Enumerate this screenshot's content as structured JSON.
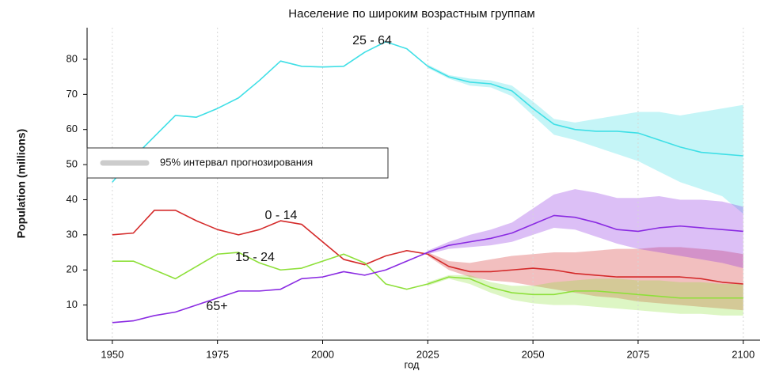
{
  "chart_data": {
    "type": "line",
    "title": "Население по широким возрастным группам",
    "y_label": "Population (millions)",
    "x_label": "год",
    "band_label": "95% интервал прогнозирования",
    "band_legend_color": "#cccccc",
    "grid": "x",
    "legend_position": "left",
    "xlim": [
      1944,
      2104
    ],
    "ylim": [
      0,
      89
    ],
    "xticks": [
      1950,
      1975,
      2000,
      2025,
      2050,
      2075,
      2100
    ],
    "yticks": [
      10,
      20,
      30,
      40,
      50,
      60,
      70,
      80
    ],
    "x": [
      1950,
      1955,
      1960,
      1965,
      1970,
      1975,
      1980,
      1985,
      1990,
      1995,
      2000,
      2005,
      2010,
      2015,
      2020,
      2025,
      2030,
      2035,
      2040,
      2045,
      2050,
      2055,
      2060,
      2065,
      2070,
      2075,
      2080,
      2085,
      2090,
      2095,
      2100
    ],
    "series": [
      {
        "name": "25 - 64",
        "color": "#3fdfe6",
        "values": [
          45,
          52,
          58,
          64,
          63.5,
          66,
          69,
          74,
          79.5,
          78,
          77.8,
          78,
          82,
          85,
          83,
          78,
          75,
          73.5,
          73,
          71,
          66,
          61.5,
          60,
          59.5,
          59.5,
          59,
          57,
          55,
          53.5,
          53,
          52.5
        ],
        "lower": [
          null,
          null,
          null,
          null,
          null,
          null,
          null,
          null,
          null,
          null,
          null,
          null,
          null,
          null,
          null,
          77.5,
          74.5,
          72.5,
          72,
          69.5,
          64,
          58.5,
          57,
          55,
          53,
          51,
          48,
          45,
          43,
          41,
          36
        ],
        "upper": [
          null,
          null,
          null,
          null,
          null,
          null,
          null,
          null,
          null,
          null,
          null,
          null,
          null,
          null,
          null,
          78.5,
          75.5,
          74.5,
          74,
          72.5,
          68,
          63,
          62,
          63,
          64,
          65,
          65,
          64,
          65,
          66,
          67
        ]
      },
      {
        "name": "0 - 14",
        "color": "#d42a2a",
        "values": [
          30,
          30.5,
          37,
          37,
          34,
          31.5,
          30,
          31.5,
          34,
          33,
          28,
          23,
          21.5,
          24,
          25.5,
          24.5,
          21,
          19.5,
          19.5,
          20,
          20.5,
          20,
          19,
          18.5,
          18,
          18,
          18,
          18,
          17.5,
          16.5,
          16
        ],
        "lower": [
          null,
          null,
          null,
          null,
          null,
          null,
          null,
          null,
          null,
          null,
          null,
          null,
          null,
          null,
          null,
          24,
          20,
          18,
          17,
          16.5,
          15.5,
          14.5,
          13.5,
          12.5,
          12,
          11,
          10.5,
          10,
          9.5,
          9,
          8.5
        ],
        "upper": [
          null,
          null,
          null,
          null,
          null,
          null,
          null,
          null,
          null,
          null,
          null,
          null,
          null,
          null,
          null,
          25,
          22.5,
          22,
          23,
          24,
          24.5,
          25,
          25,
          25.5,
          26,
          26,
          26.5,
          26.5,
          26,
          25.5,
          24.5
        ]
      },
      {
        "name": "15 - 24",
        "color": "#8ee03a",
        "values": [
          22.5,
          22.5,
          20,
          17.5,
          21,
          24.5,
          25,
          22,
          20,
          20.5,
          22.5,
          24.5,
          22,
          16,
          14.5,
          16,
          18,
          17.5,
          15,
          13.5,
          13,
          13,
          14,
          14,
          13.5,
          13,
          12.5,
          12,
          12,
          12,
          12
        ],
        "lower": [
          null,
          null,
          null,
          null,
          null,
          null,
          null,
          null,
          null,
          null,
          null,
          null,
          null,
          null,
          null,
          15.5,
          17.5,
          16,
          13.5,
          11.5,
          10.5,
          10,
          10,
          9.5,
          9,
          8.5,
          8,
          7.5,
          7.5,
          7,
          7
        ],
        "upper": [
          null,
          null,
          null,
          null,
          null,
          null,
          null,
          null,
          null,
          null,
          null,
          null,
          null,
          null,
          null,
          16.5,
          18.5,
          18.5,
          16.5,
          15.5,
          15.5,
          16.5,
          17,
          17.5,
          17.5,
          17,
          17,
          16.5,
          16.5,
          16,
          16
        ]
      },
      {
        "name": "65+",
        "color": "#8a2be2",
        "values": [
          5,
          5.5,
          7,
          8,
          10,
          12,
          14,
          14,
          14.5,
          17.5,
          18,
          19.5,
          18.5,
          20,
          22.5,
          25,
          27,
          28,
          29,
          30.5,
          33,
          35.5,
          35,
          33.5,
          31.5,
          31,
          32,
          32.5,
          32,
          31.5,
          31
        ],
        "lower": [
          null,
          null,
          null,
          null,
          null,
          null,
          null,
          null,
          null,
          null,
          null,
          null,
          null,
          null,
          null,
          24.5,
          26,
          26.5,
          27,
          28,
          30,
          32,
          31.5,
          29.5,
          27.5,
          26,
          25,
          24,
          23,
          22,
          20.5
        ],
        "upper": [
          null,
          null,
          null,
          null,
          null,
          null,
          null,
          null,
          null,
          null,
          null,
          null,
          null,
          null,
          null,
          25.5,
          28,
          30,
          31.5,
          33.5,
          37.5,
          41.5,
          43,
          42,
          40.5,
          40.5,
          41,
          40,
          40,
          39.5,
          38
        ]
      }
    ]
  }
}
